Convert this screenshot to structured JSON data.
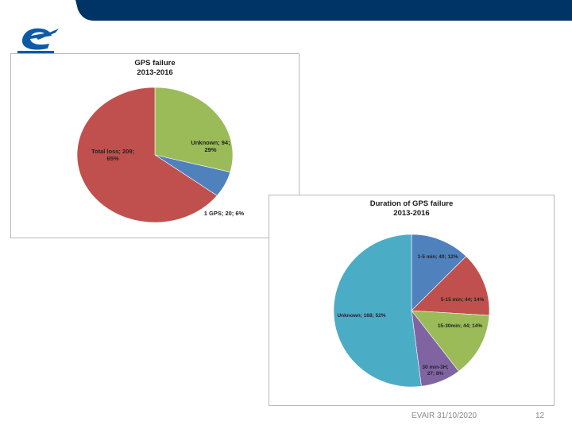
{
  "colors": {
    "header_band": "#003366",
    "logo_blue": "#0d5aa7",
    "footer_text": "#8c8c8c"
  },
  "icons": {
    "logo": "eurocontrol-logo-icon"
  },
  "footer": {
    "left": "EVAIR 31/10/2020",
    "right": "12"
  },
  "chart_data": [
    {
      "type": "pie",
      "title_line1": "GPS failure",
      "title_line2": "2013-2016",
      "categories": [
        "Unknown",
        "1 GPS",
        "Total loss"
      ],
      "values": [
        94,
        20,
        209
      ],
      "percents": [
        29,
        6,
        65
      ],
      "colors": [
        "#9bbb59",
        "#4f81bd",
        "#c0504d"
      ],
      "labels": [
        [
          "Unknown; 94;",
          "29%"
        ],
        [
          "1 GPS; 20; 6%"
        ],
        [
          "Total loss; 209;",
          "65%"
        ]
      ]
    },
    {
      "type": "pie",
      "title_line1": "Duration of GPS failure",
      "title_line2": "2013-2016",
      "categories": [
        "1-5 min",
        "5-15 min",
        "15-30min",
        "30 min-3H",
        "Unknown"
      ],
      "values": [
        40,
        44,
        44,
        27,
        168
      ],
      "percents": [
        12,
        14,
        14,
        8,
        52
      ],
      "colors": [
        "#4f81bd",
        "#c0504d",
        "#9bbb59",
        "#8064a2",
        "#4bacc6"
      ],
      "labels": [
        [
          "1-5 min; 40; 12%"
        ],
        [
          "5-15 min; 44; 14%"
        ],
        [
          "15-30min; 44; 14%"
        ],
        [
          "30 min-3H;",
          "27; 8%"
        ],
        [
          "Unknown; 168; 52%"
        ]
      ]
    }
  ]
}
